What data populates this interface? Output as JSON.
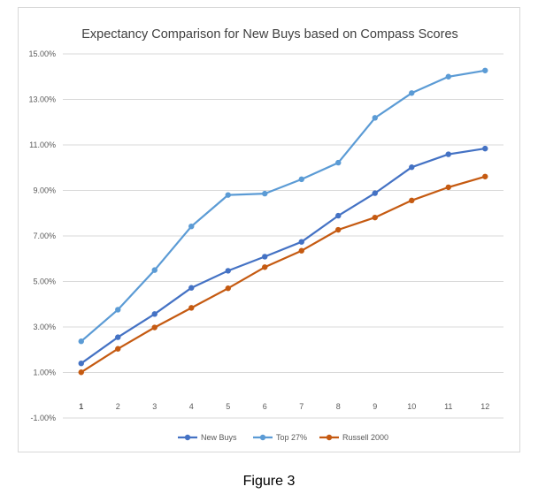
{
  "figure": {
    "caption": "Figure 3"
  },
  "chart_data": {
    "type": "line",
    "title": "Expectancy Comparison for New Buys based on Compass Scores",
    "xlabel": "",
    "ylabel": "",
    "x": [
      1,
      2,
      3,
      4,
      5,
      6,
      7,
      8,
      9,
      10,
      11,
      12
    ],
    "x_tick_labels": [
      "1",
      "2",
      "3",
      "4",
      "5",
      "6",
      "7",
      "8",
      "9",
      "10",
      "11",
      "12"
    ],
    "ylim": [
      -1.0,
      15.0
    ],
    "y_ticks": [
      -1.0,
      1.0,
      3.0,
      5.0,
      7.0,
      9.0,
      11.0,
      13.0,
      15.0
    ],
    "y_tick_labels": [
      "-1.00%",
      "1.00%",
      "3.00%",
      "5.00%",
      "7.00%",
      "9.00%",
      "11.00%",
      "13.00%",
      "15.00%"
    ],
    "grid": true,
    "legend_position": "bottom",
    "series": [
      {
        "name": "New Buys",
        "color": "#4472c4",
        "values": [
          1.4,
          2.55,
          3.57,
          4.72,
          5.47,
          6.09,
          6.74,
          7.89,
          8.88,
          10.02,
          10.59,
          10.84
        ]
      },
      {
        "name": "Top 27%",
        "color": "#5b9bd5",
        "values": [
          2.37,
          3.76,
          5.5,
          7.42,
          8.8,
          8.86,
          9.49,
          10.22,
          12.19,
          13.28,
          14.0,
          14.27
        ]
      },
      {
        "name": "Russell 2000",
        "color": "#c55a11",
        "values": [
          1.01,
          2.04,
          2.98,
          3.84,
          4.7,
          5.63,
          6.35,
          7.27,
          7.81,
          8.56,
          9.14,
          9.61
        ]
      }
    ]
  }
}
